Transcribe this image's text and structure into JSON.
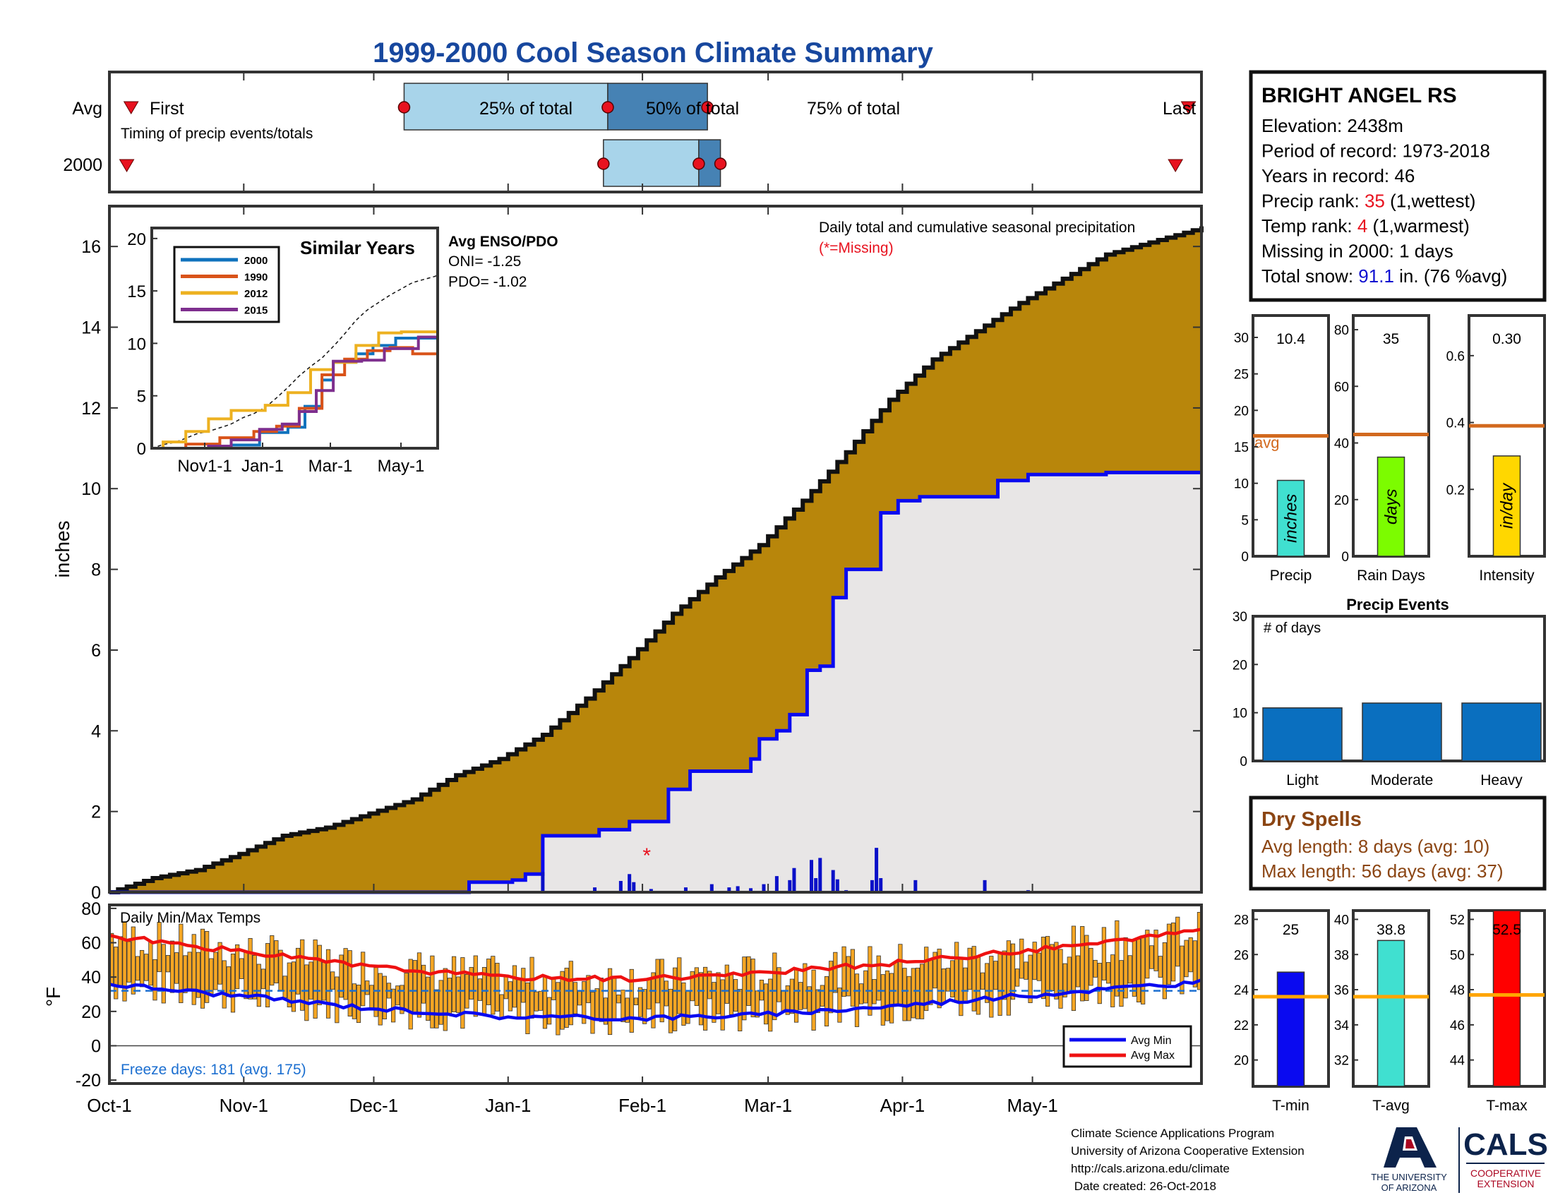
{
  "title": "1999-2000 Cool Season Climate Summary",
  "timing": {
    "label": "Timing of precip events/totals",
    "rows": [
      "Avg",
      "2000"
    ],
    "first": "First",
    "last": "Last",
    "pct25": "25% of total",
    "pct50": "50% of total",
    "pct75": "75% of total",
    "avg_days": {
      "first": 5,
      "p25": 68,
      "p50": 115,
      "p75": 138,
      "last": 249
    },
    "y2000_days": {
      "first": 4,
      "p25": 114,
      "p50": 136,
      "p75": 141,
      "last": 246
    }
  },
  "station": {
    "name": "BRIGHT ANGEL RS",
    "lines": [
      {
        "label": "Elevation: ",
        "value": "2438m",
        "suffix": "",
        "color": "#000000"
      },
      {
        "label": "Period of record: ",
        "value": "1973-2018",
        "suffix": "",
        "color": "#000000"
      },
      {
        "label": "Years in record: ",
        "value": "46",
        "suffix": "",
        "color": "#000000"
      },
      {
        "label": "Precip rank: ",
        "value": "35",
        "suffix": " (1,wettest)",
        "color": "#e8121f"
      },
      {
        "label": "Temp rank: ",
        "value": "4",
        "suffix": " (1,warmest)",
        "color": "#e8121f"
      },
      {
        "label": "Missing in 2000: ",
        "value": "1",
        "suffix": " days",
        "color": "#000000"
      },
      {
        "label": "Total snow: ",
        "value": "91.1",
        "suffix": " in. (76 %avg)",
        "color": "#1010d0"
      }
    ]
  },
  "main_chart": {
    "ylabel": "inches",
    "annotation": "Daily total and cumulative seasonal precipitation",
    "missing_note": "(*=Missing)",
    "ylim": [
      0,
      17
    ],
    "yticks": [
      "0",
      "2",
      "4",
      "6",
      "8",
      "10",
      "12",
      "14",
      "16"
    ],
    "xticks": [
      "Oct-1",
      "Nov-1",
      "Dec-1",
      "Jan-1",
      "Feb-1",
      "Mar-1",
      "Apr-1",
      "May-1"
    ],
    "colors": {
      "avg_fill": "#b8860b",
      "season_fill": "#e8e6e6",
      "season_line": "#0a0af0",
      "daily_bar": "#0a10c8",
      "missing": "#e8121f"
    }
  },
  "chart_data": [
    {
      "type": "area",
      "name_avg": "Average cumulative precipitation",
      "x_unit": "day of season (0 = Oct-1)",
      "avg_cumulative": {
        "x": [
          0,
          10,
          20,
          30,
          40,
          50,
          60,
          70,
          80,
          90,
          100,
          110,
          120,
          130,
          140,
          150,
          160,
          170,
          180,
          190,
          200,
          210,
          220,
          230,
          240,
          250,
          252
        ],
        "y": [
          0.0,
          0.35,
          0.55,
          0.95,
          1.4,
          1.6,
          1.95,
          2.3,
          2.9,
          3.3,
          3.9,
          4.8,
          5.8,
          6.9,
          7.8,
          8.6,
          9.7,
          10.9,
          12.2,
          13.2,
          13.9,
          14.6,
          15.2,
          15.8,
          16.1,
          16.4,
          16.5
        ]
      },
      "season_cumulative": {
        "x": [
          0,
          73,
          83,
          93,
          96,
          100,
          113,
          120,
          129,
          134,
          137,
          148,
          150,
          154,
          157,
          161,
          164,
          167,
          170,
          176,
          178,
          182,
          187,
          205,
          212,
          230,
          252
        ],
        "y": [
          0.0,
          0.0,
          0.25,
          0.3,
          0.45,
          1.4,
          1.55,
          1.75,
          2.55,
          3.0,
          3.0,
          3.3,
          3.8,
          4.0,
          4.4,
          5.5,
          5.6,
          7.3,
          8.0,
          8.0,
          9.4,
          9.7,
          9.8,
          10.2,
          10.35,
          10.4,
          10.4
        ]
      },
      "daily_precip": {
        "days": [
          49,
          61,
          82,
          100,
          112,
          118,
          120,
          121,
          125,
          133,
          139,
          143,
          145,
          148,
          151,
          154,
          157,
          158,
          162,
          163,
          164,
          167,
          168,
          170,
          176,
          177,
          178,
          186,
          202,
          212
        ],
        "values": [
          0.03,
          0.03,
          0.03,
          0.5,
          0.12,
          0.28,
          0.45,
          0.25,
          0.08,
          0.12,
          0.2,
          0.12,
          0.15,
          0.1,
          0.2,
          0.4,
          0.3,
          0.6,
          0.8,
          0.35,
          0.85,
          0.55,
          0.32,
          0.05,
          0.3,
          1.1,
          0.35,
          0.3,
          0.3,
          0.05
        ]
      },
      "missing_days": [
        124
      ]
    },
    {
      "type": "bar",
      "title": "Precip",
      "ylabel": "inches",
      "value": 10.4,
      "value_label": "10.4",
      "avg": 16.5,
      "avg_label": "avg",
      "ylim": [
        0,
        33
      ],
      "yticks": [
        0,
        5,
        10,
        15,
        20,
        25,
        30
      ],
      "color": "#40e0d0"
    },
    {
      "type": "bar",
      "title": "Rain Days",
      "ylabel": "days",
      "value": 35,
      "value_label": "35",
      "avg": 43,
      "ylim": [
        0,
        85
      ],
      "yticks": [
        0,
        20,
        40,
        60,
        80
      ],
      "color": "#7cfc00"
    },
    {
      "type": "bar",
      "title": "Intensity",
      "ylabel": "in/day",
      "value": 0.3,
      "value_label": "0.30",
      "avg": 0.39,
      "ylim": [
        0,
        0.72
      ],
      "yticks": [
        0.2,
        0.4,
        0.6
      ],
      "color": "#ffd700"
    },
    {
      "type": "bar",
      "title": "Precip Events",
      "ylabel": "# of days",
      "categories": [
        "Light",
        "Moderate",
        "Heavy"
      ],
      "values": [
        11,
        12,
        12
      ],
      "ylim": [
        0,
        30
      ],
      "yticks": [
        0,
        10,
        20,
        30
      ],
      "color": "#0a6fbf"
    },
    {
      "type": "bar",
      "title": "T-min",
      "value": 25,
      "value_label": "25",
      "avg": 23.6,
      "ylim": [
        18.5,
        28.5
      ],
      "yticks": [
        20,
        22,
        24,
        26,
        28
      ],
      "color": "#0a0af0"
    },
    {
      "type": "bar",
      "title": "T-avg",
      "value": 38.8,
      "value_label": "38.8",
      "avg": 35.6,
      "ylim": [
        30.5,
        40.5
      ],
      "yticks": [
        32,
        34,
        36,
        38,
        40
      ],
      "color": "#40e0d0"
    },
    {
      "type": "bar",
      "title": "T-max",
      "value": 52.5,
      "value_label": "52.5",
      "avg": 47.7,
      "ylim": [
        42.5,
        52.5
      ],
      "yticks": [
        44,
        46,
        48,
        50,
        52
      ],
      "color": "#ff0000"
    },
    {
      "type": "line",
      "title": "Daily Min/Max Temps",
      "ylabel": "°F",
      "ylim": [
        -22,
        82
      ],
      "yticks": [
        "-20",
        "0",
        "20",
        "40",
        "60",
        "80"
      ],
      "freeze_line": 32,
      "avg_min": {
        "x": [
          0,
          30,
          60,
          90,
          120,
          150,
          180,
          210,
          240,
          252
        ],
        "y": [
          36,
          29,
          22,
          17,
          16,
          18,
          23,
          29,
          35,
          37
        ]
      },
      "avg_max": {
        "x": [
          0,
          30,
          60,
          90,
          120,
          150,
          180,
          210,
          240,
          252
        ],
        "y": [
          64,
          55,
          46,
          40,
          39,
          42,
          48,
          55,
          63,
          68
        ]
      },
      "series": [
        {
          "name": "Avg Min"
        },
        {
          "name": "Avg Max"
        }
      ],
      "colors": {
        "bars": "#f5a623",
        "min": "#0a0af0",
        "max": "#ee1111",
        "freeze": "#1c6fd0"
      }
    }
  ],
  "precip_events": {
    "ylabel": "# of days"
  },
  "dry_spells": {
    "title": "Dry Spells",
    "avg_length": "Avg length: 8 days (avg: 10)",
    "max_length": "Max length: 56 days (avg: 37)"
  },
  "temps_panel": {
    "label": "Daily Min/Max Temps",
    "freeze": "Freeze days: 181 (avg. 175)"
  },
  "footer": {
    "lines": [
      "Climate Science Applications Program",
      "University of Arizona Cooperative Extension",
      "http://cals.arizona.edu/climate",
      " Date created: 26-Oct-2018"
    ],
    "ua_line1": "THE UNIVERSITY",
    "ua_line2": "OF ARIZONA",
    "cals": "CALS",
    "coop1": "COOPERATIVE",
    "coop2": "EXTENSION"
  }
}
